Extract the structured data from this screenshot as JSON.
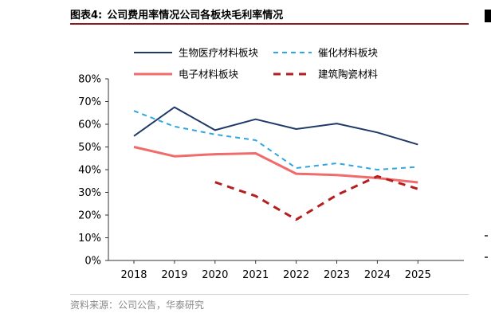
{
  "figure": {
    "label": "图表4:",
    "title": "公司费用率情况公司各板块毛利率情况",
    "source": "资料来源：公司公告，华泰研究"
  },
  "chart_data": {
    "type": "line",
    "title": "公司费用率情况公司各板块毛利率情况",
    "xlabel": "",
    "ylabel": "",
    "categories": [
      "2018",
      "2019",
      "2020",
      "2021",
      "2022",
      "2023",
      "2024",
      "2025"
    ],
    "ylim": [
      0,
      80
    ],
    "yticks": [
      0,
      10,
      20,
      30,
      40,
      50,
      60,
      70,
      80
    ],
    "ytick_labels": [
      "0%",
      "10%",
      "20%",
      "30%",
      "40%",
      "50%",
      "60%",
      "70%",
      "80%"
    ],
    "grid": false,
    "legend_position": "top",
    "series": [
      {
        "name": "生物医疗材料板块",
        "color": "#1f3a68",
        "style": "solid",
        "values": [
          54.8,
          67.5,
          57.4,
          62.2,
          57.9,
          60.3,
          56.4,
          51.1
        ]
      },
      {
        "name": "催化材料板块",
        "color": "#2ea7e0",
        "style": "dash",
        "values": [
          65.9,
          59.0,
          55.5,
          53.0,
          40.7,
          42.8,
          40.0,
          41.2
        ]
      },
      {
        "name": "电子材料板块",
        "color": "#f06b6b",
        "style": "solid",
        "values": [
          50.0,
          45.9,
          46.8,
          47.2,
          38.2,
          37.6,
          36.3,
          34.4
        ]
      },
      {
        "name": "建筑陶瓷材料",
        "color": "#b51e1e",
        "style": "dash-bold",
        "values": [
          null,
          null,
          34.5,
          28.4,
          18.0,
          28.8,
          37.1,
          31.5
        ]
      }
    ]
  }
}
